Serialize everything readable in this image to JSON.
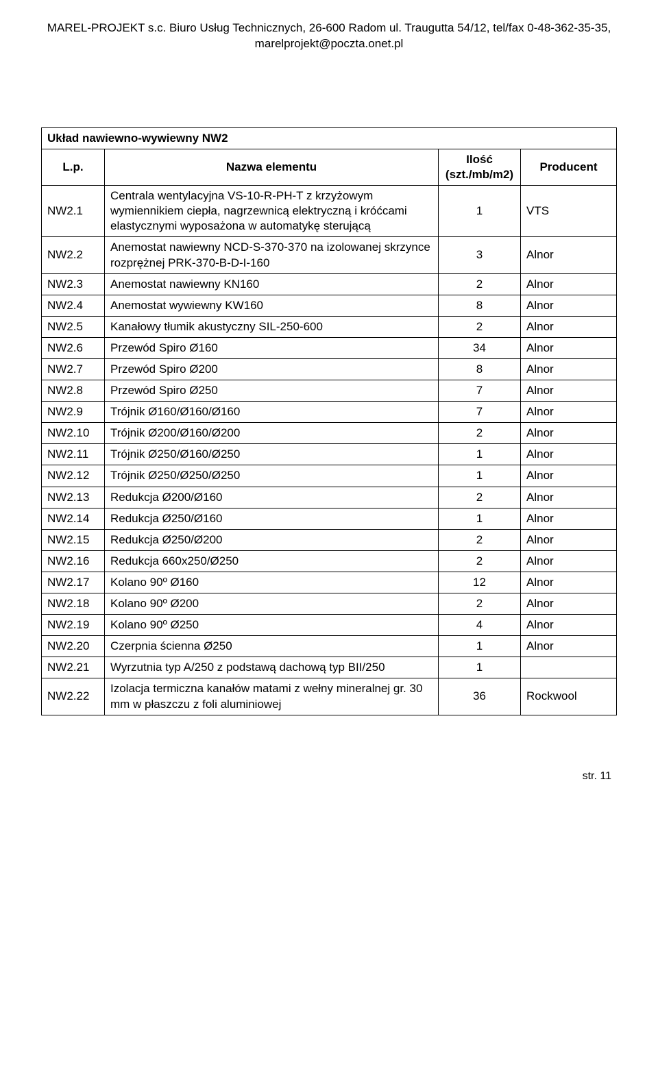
{
  "header": {
    "line1": "MAREL-PROJEKT s.c. Biuro Usług Technicznych, 26-600 Radom ul. Traugutta 54/12, tel/fax 0-48-362-35-35,",
    "line2": "marelprojekt@poczta.onet.pl"
  },
  "table": {
    "title": "Układ nawiewno-wywiewny NW2",
    "columns": {
      "lp": "L.p.",
      "name": "Nazwa elementu",
      "qty_l1": "Ilość",
      "qty_l2": "(szt./mb/m2)",
      "producer": "Producent"
    },
    "rows": [
      {
        "lp": "NW2.1",
        "name": "Centrala wentylacyjna VS-10-R-PH-T z krzyżowym wymiennikiem ciepła, nagrzewnicą elektryczną i króćcami elastycznymi wyposażona w automatykę sterującą",
        "qty": "1",
        "prod": "VTS"
      },
      {
        "lp": "NW2.2",
        "name": "Anemostat nawiewny NCD-S-370-370 na izolowanej skrzynce rozprężnej PRK-370-B-D-I-160",
        "qty": "3",
        "prod": "Alnor"
      },
      {
        "lp": "NW2.3",
        "name": "Anemostat nawiewny KN160",
        "qty": "2",
        "prod": "Alnor"
      },
      {
        "lp": "NW2.4",
        "name": "Anemostat wywiewny KW160",
        "qty": "8",
        "prod": "Alnor"
      },
      {
        "lp": "NW2.5",
        "name": "Kanałowy tłumik akustyczny SIL-250-600",
        "qty": "2",
        "prod": "Alnor"
      },
      {
        "lp": "NW2.6",
        "name": "Przewód Spiro Ø160",
        "qty": "34",
        "prod": "Alnor"
      },
      {
        "lp": "NW2.7",
        "name": "Przewód Spiro Ø200",
        "qty": "8",
        "prod": "Alnor"
      },
      {
        "lp": "NW2.8",
        "name": "Przewód Spiro Ø250",
        "qty": "7",
        "prod": "Alnor"
      },
      {
        "lp": "NW2.9",
        "name": "Trójnik Ø160/Ø160/Ø160",
        "qty": "7",
        "prod": "Alnor"
      },
      {
        "lp": "NW2.10",
        "name": "Trójnik Ø200/Ø160/Ø200",
        "qty": "2",
        "prod": "Alnor"
      },
      {
        "lp": "NW2.11",
        "name": "Trójnik Ø250/Ø160/Ø250",
        "qty": "1",
        "prod": "Alnor"
      },
      {
        "lp": "NW2.12",
        "name": "Trójnik Ø250/Ø250/Ø250",
        "qty": "1",
        "prod": "Alnor"
      },
      {
        "lp": "NW2.13",
        "name": "Redukcja Ø200/Ø160",
        "qty": "2",
        "prod": "Alnor"
      },
      {
        "lp": "NW2.14",
        "name": "Redukcja Ø250/Ø160",
        "qty": "1",
        "prod": "Alnor"
      },
      {
        "lp": "NW2.15",
        "name": "Redukcja Ø250/Ø200",
        "qty": "2",
        "prod": "Alnor"
      },
      {
        "lp": "NW2.16",
        "name": "Redukcja 660x250/Ø250",
        "qty": "2",
        "prod": "Alnor"
      },
      {
        "lp": "NW2.17",
        "name": "Kolano 90º Ø160",
        "qty": "12",
        "prod": "Alnor"
      },
      {
        "lp": "NW2.18",
        "name": "Kolano 90º Ø200",
        "qty": "2",
        "prod": "Alnor"
      },
      {
        "lp": "NW2.19",
        "name": "Kolano 90º Ø250",
        "qty": "4",
        "prod": "Alnor"
      },
      {
        "lp": "NW2.20",
        "name": "Czerpnia ścienna Ø250",
        "qty": "1",
        "prod": "Alnor"
      },
      {
        "lp": "NW2.21",
        "name": "Wyrzutnia typ A/250 z podstawą dachową typ BII/250",
        "qty": "1",
        "prod": ""
      },
      {
        "lp": "NW2.22",
        "name": "Izolacja termiczna kanałów matami z wełny mineralnej gr. 30 mm w płaszczu z foli aluminiowej",
        "qty": "36",
        "prod": "Rockwool"
      }
    ]
  },
  "footer": {
    "page": "str. 11"
  }
}
